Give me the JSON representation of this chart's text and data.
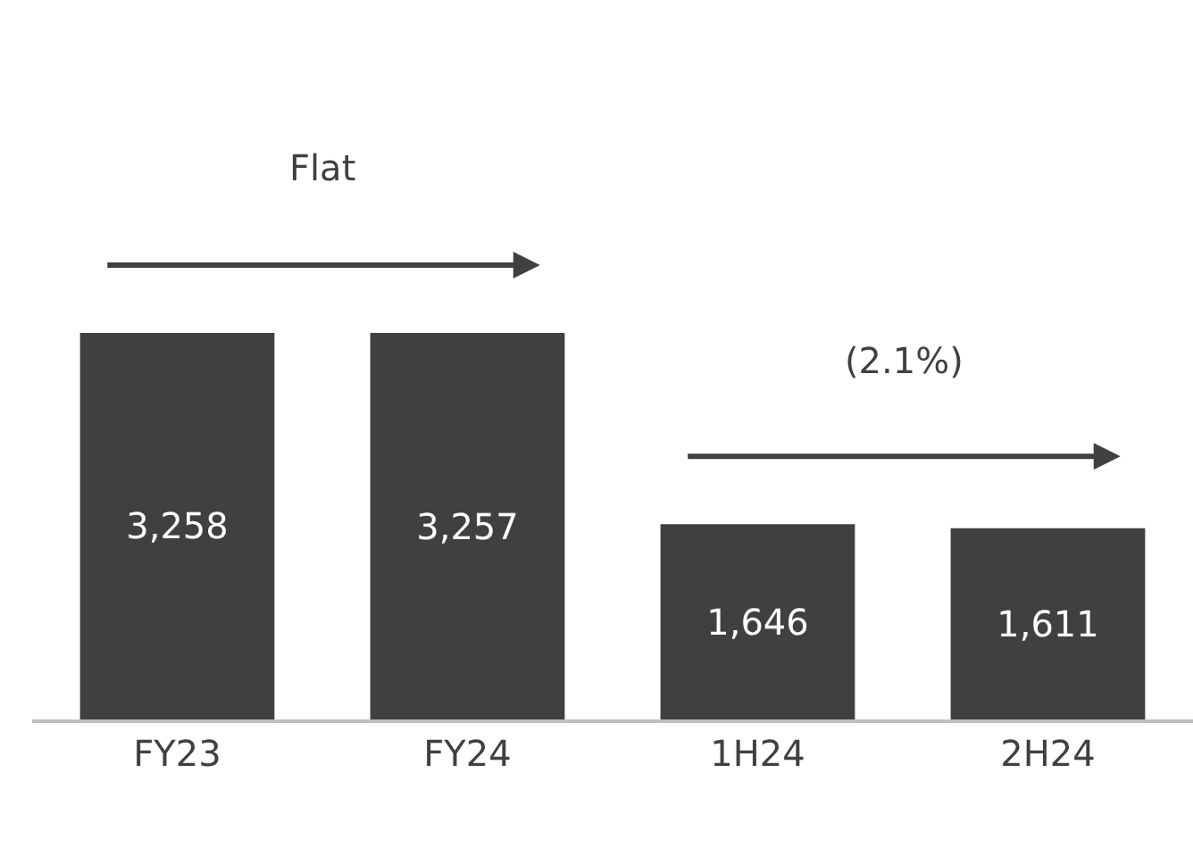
{
  "chart_data": {
    "type": "bar",
    "categories": [
      "FY23",
      "FY24",
      "1H24",
      "2H24"
    ],
    "values": [
      3258,
      3257,
      1646,
      1611
    ],
    "color": "#404040",
    "value_labels": [
      "3,258",
      "3,257",
      "1,646",
      "1,611"
    ],
    "annotations": [
      "Flat",
      "(2.1%)"
    ]
  }
}
